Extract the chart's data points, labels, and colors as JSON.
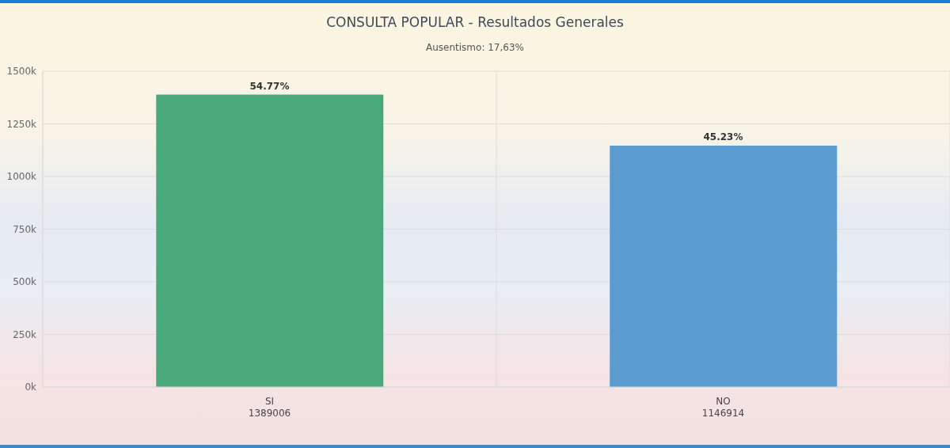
{
  "chart_data": {
    "type": "bar",
    "title": "CONSULTA POPULAR - Resultados Generales",
    "subtitle": "Ausentismo: 17,63%",
    "categories": [
      "SI\n1389006",
      "NO\n1146914"
    ],
    "values": [
      1389006,
      1146914
    ],
    "colors": [
      "#4aa97a",
      "#5b9bd0"
    ],
    "annotations": [
      {
        "text": "54.77%",
        "x": "SI\n1389006",
        "y": 1389006
      },
      {
        "text": "45.23%",
        "x": "NO\n1146914",
        "y": 1146914
      }
    ],
    "ylim": [
      0,
      1500000
    ],
    "yticks": [
      {
        "value": 0,
        "label": "0k"
      },
      {
        "value": 250000,
        "label": "250k"
      },
      {
        "value": 500000,
        "label": "500k"
      },
      {
        "value": 750000,
        "label": "750k"
      },
      {
        "value": 1000000,
        "label": "1000k"
      },
      {
        "value": 1250000,
        "label": "1250k"
      },
      {
        "value": 1500000,
        "label": "1500k"
      }
    ],
    "grid": true
  }
}
